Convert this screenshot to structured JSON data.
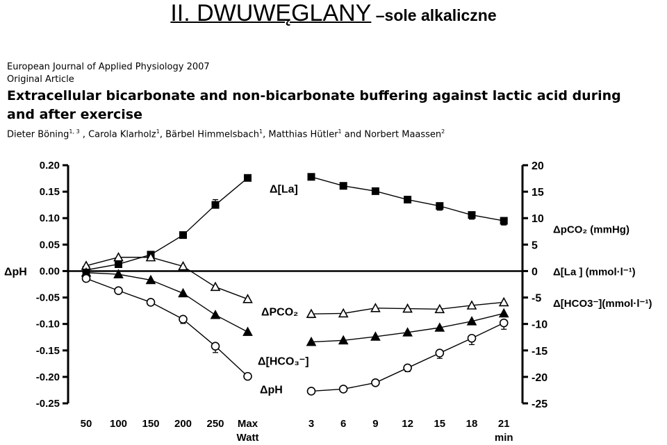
{
  "slide": {
    "title_main": "II. DWUWĘGLANY",
    "title_sub": " –sole alkaliczne"
  },
  "article": {
    "journal": "European Journal of Applied Physiology 2007",
    "type": "Original Article",
    "title": "Extracellular bicarbonate and non-bicarbonate buffering against lactic acid during and after exercise",
    "authors": [
      {
        "name": "Dieter Böning",
        "sup": "1, 3",
        "sep": " , "
      },
      {
        "name": "Carola Klarholz",
        "sup": "1",
        "sep": ", "
      },
      {
        "name": "Bärbel Himmelsbach",
        "sup": "1",
        "sep": ", "
      },
      {
        "name": "Matthias Hütler",
        "sup": "1",
        "sep": " and "
      },
      {
        "name": "Norbert Maassen",
        "sup": "2",
        "sep": ""
      }
    ]
  },
  "chart_data": {
    "type": "line",
    "left_axis": {
      "label": "ΔpH",
      "ylim": [
        -0.25,
        0.2
      ],
      "ticks": [
        "0.20",
        "0.15",
        "0.10",
        "0.05",
        "0.00",
        "-0.05",
        "-0.10",
        "-0.15",
        "-0.20",
        "-0.25"
      ],
      "tick_values": [
        0.2,
        0.15,
        0.1,
        0.05,
        0.0,
        -0.05,
        -0.1,
        -0.15,
        -0.2,
        -0.25
      ]
    },
    "right_axis": {
      "ylim": [
        -25,
        20
      ],
      "ticks": [
        "20",
        "15",
        "10",
        "5",
        "0",
        "-5",
        "-10",
        "-15",
        "-20",
        "-25"
      ],
      "tick_values": [
        20,
        15,
        10,
        5,
        0,
        -5,
        -10,
        -15,
        -20,
        -25
      ],
      "labels": [
        {
          "text": "ΔpCO₂ (mmHg)",
          "at": 8
        },
        {
          "text": "Δ[La ]    (mmol·l⁻¹)",
          "at": 0
        },
        {
          "text": "Δ[HCO3⁻](mmol·l⁻¹)",
          "at": -6
        }
      ]
    },
    "exercise": {
      "categories": [
        "50",
        "100",
        "150",
        "200",
        "250",
        "Max"
      ],
      "unit": "Watt"
    },
    "recovery": {
      "categories": [
        "3",
        "6",
        "9",
        "12",
        "15",
        "18",
        "21"
      ],
      "unit": "min"
    },
    "series": [
      {
        "name": "Δ[La]",
        "marker": "square-filled",
        "exercise": [
          0.2,
          1.3,
          3.1,
          6.8,
          12.5,
          17.6
        ],
        "exercise_err": [
          0,
          0,
          0,
          0.5,
          1.0,
          0.6
        ],
        "recovery": [
          17.8,
          16.1,
          15.1,
          13.5,
          12.3,
          10.6,
          9.5
        ],
        "recovery_err": [
          0,
          0.6,
          0.5,
          0.6,
          0.8,
          0.8,
          0.8
        ]
      },
      {
        "name": "ΔPCO₂",
        "marker": "triangle-open",
        "exercise": [
          1.0,
          2.6,
          2.6,
          0.9,
          -3.0,
          -5.3
        ],
        "exercise_err": [
          0,
          0,
          0,
          0,
          0,
          0
        ],
        "recovery": [
          -8.1,
          -8.0,
          -7.0,
          -7.1,
          -7.2,
          -6.5,
          -5.9
        ],
        "recovery_err": [
          0.7,
          0.6,
          0.6,
          0.6,
          0.6,
          0.6,
          0.6
        ]
      },
      {
        "name": "Δ[HCO₃⁻]",
        "marker": "triangle-filled",
        "exercise": [
          -0.3,
          -0.6,
          -1.7,
          -4.2,
          -8.3,
          -11.5
        ],
        "exercise_err": [
          0,
          0,
          0,
          0,
          0,
          0
        ],
        "recovery": [
          -13.4,
          -13.1,
          -12.4,
          -11.6,
          -10.7,
          -9.5,
          -8.0
        ],
        "recovery_err": [
          0,
          0,
          0,
          0,
          0,
          0,
          0
        ]
      },
      {
        "name": "ΔpH",
        "marker": "circle-open",
        "exercise": [
          -0.014,
          -0.037,
          -0.059,
          -0.091,
          -0.142,
          -0.199
        ],
        "exercise_err": [
          0,
          0,
          0.005,
          0.008,
          0.012,
          0
        ],
        "recovery": [
          -0.227,
          -0.223,
          -0.211,
          -0.183,
          -0.155,
          -0.127,
          -0.098
        ],
        "recovery_err": [
          0,
          0,
          0.005,
          0.007,
          0.01,
          0.012,
          0.012
        ]
      }
    ],
    "series_axis": {
      "Δ[La]": "right",
      "ΔPCO₂": "right",
      "Δ[HCO₃⁻]": "right",
      "ΔpH": "left"
    },
    "inline_labels": [
      "Δ[La]",
      "ΔPCO₂",
      "Δ[HCO₃⁻]",
      "ΔpH"
    ],
    "grid": false,
    "legend": "none"
  }
}
